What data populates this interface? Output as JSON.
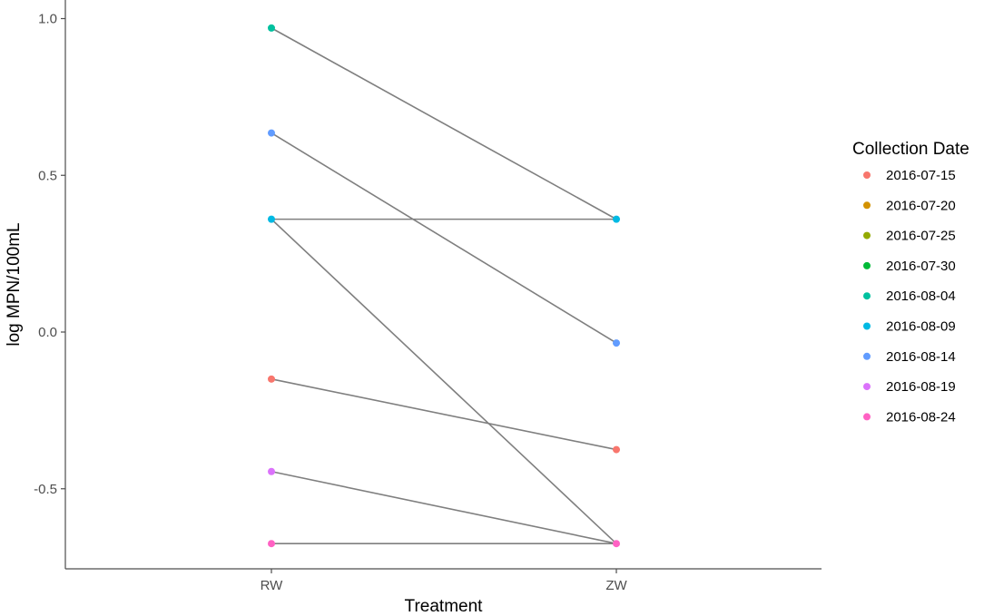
{
  "chart_data": {
    "type": "line",
    "xlabel": "Treatment",
    "ylabel": "log MPN/100mL",
    "categories": [
      "RW",
      "ZW"
    ],
    "ylim": [
      -0.76,
      1.06
    ],
    "yticks": [
      -0.5,
      0.0,
      0.5,
      1.0
    ],
    "ytick_labels": [
      "-0.5",
      "0.0",
      "0.5",
      "1.0"
    ],
    "grid": false,
    "legend_title": "Collection Date",
    "legend_position": "right",
    "legend_entries": [
      {
        "label": "2016-07-15",
        "color": "#F8766D"
      },
      {
        "label": "2016-07-20",
        "color": "#D39200"
      },
      {
        "label": "2016-07-25",
        "color": "#93AA00"
      },
      {
        "label": "2016-07-30",
        "color": "#00BA38"
      },
      {
        "label": "2016-08-04",
        "color": "#00C19F"
      },
      {
        "label": "2016-08-09",
        "color": "#00B9E3"
      },
      {
        "label": "2016-08-14",
        "color": "#619CFF"
      },
      {
        "label": "2016-08-19",
        "color": "#DB72FB"
      },
      {
        "label": "2016-08-24",
        "color": "#FF61C3"
      }
    ],
    "line_color": "#7f7f7f",
    "lines": [
      {
        "from": {
          "x": "RW",
          "y": 0.97
        },
        "to": {
          "x": "ZW",
          "y": 0.36
        }
      },
      {
        "from": {
          "x": "RW",
          "y": 0.635
        },
        "to": {
          "x": "ZW",
          "y": -0.035
        }
      },
      {
        "from": {
          "x": "RW",
          "y": 0.36
        },
        "to": {
          "x": "ZW",
          "y": 0.36
        }
      },
      {
        "from": {
          "x": "RW",
          "y": 0.36
        },
        "to": {
          "x": "ZW",
          "y": -0.675
        }
      },
      {
        "from": {
          "x": "RW",
          "y": -0.15
        },
        "to": {
          "x": "ZW",
          "y": -0.375
        }
      },
      {
        "from": {
          "x": "RW",
          "y": -0.445
        },
        "to": {
          "x": "ZW",
          "y": -0.675
        }
      },
      {
        "from": {
          "x": "RW",
          "y": -0.675
        },
        "to": {
          "x": "ZW",
          "y": -0.675
        }
      }
    ],
    "points": [
      {
        "x": "RW",
        "y": 0.97,
        "color": "#00C19F"
      },
      {
        "x": "RW",
        "y": 0.635,
        "color": "#619CFF"
      },
      {
        "x": "RW",
        "y": 0.36,
        "color": "#00B9E3"
      },
      {
        "x": "RW",
        "y": -0.15,
        "color": "#F8766D"
      },
      {
        "x": "RW",
        "y": -0.445,
        "color": "#DB72FB"
      },
      {
        "x": "RW",
        "y": -0.675,
        "color": "#FF61C3"
      },
      {
        "x": "ZW",
        "y": 0.36,
        "color": "#00B9E3"
      },
      {
        "x": "ZW",
        "y": -0.035,
        "color": "#619CFF"
      },
      {
        "x": "ZW",
        "y": -0.375,
        "color": "#F8766D"
      },
      {
        "x": "ZW",
        "y": -0.675,
        "color": "#FF61C3"
      }
    ]
  }
}
